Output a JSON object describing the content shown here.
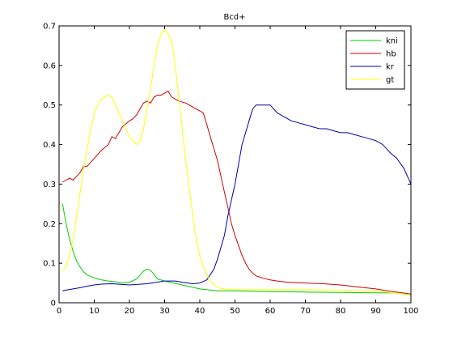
{
  "chart_data": {
    "type": "line",
    "title": "Bcd+",
    "xlabel": "",
    "ylabel": "",
    "xlim": [
      0,
      100
    ],
    "ylim": [
      0,
      0.7
    ],
    "xticks": [
      0,
      10,
      20,
      30,
      40,
      50,
      60,
      70,
      80,
      90,
      100
    ],
    "yticks": [
      0,
      0.1,
      0.2,
      0.3,
      0.4,
      0.5,
      0.6,
      0.7
    ],
    "ytick_labels": [
      "0",
      "0.1",
      "0.2",
      "0.3",
      "0.4",
      "0.5",
      "0.6",
      "0.7"
    ],
    "grid": false,
    "legend_position": "top-right",
    "series": [
      {
        "name": "kni",
        "color": "#00cc00",
        "x": [
          1,
          2,
          3,
          4,
          5,
          6,
          7,
          8,
          10,
          12,
          14,
          16,
          18,
          20,
          22,
          23,
          24,
          25,
          26,
          27,
          28,
          30,
          35,
          40,
          45,
          50,
          60,
          70,
          80,
          90,
          95,
          100
        ],
        "y": [
          0.25,
          0.2,
          0.16,
          0.13,
          0.105,
          0.09,
          0.078,
          0.07,
          0.063,
          0.058,
          0.055,
          0.053,
          0.05,
          0.052,
          0.06,
          0.07,
          0.08,
          0.085,
          0.082,
          0.072,
          0.06,
          0.055,
          0.045,
          0.035,
          0.03,
          0.03,
          0.028,
          0.027,
          0.026,
          0.025,
          0.025,
          0.02
        ]
      },
      {
        "name": "hb",
        "color": "#cc0000",
        "x": [
          1,
          2,
          3,
          4,
          5,
          6,
          7,
          8,
          10,
          12,
          14,
          15,
          16,
          18,
          20,
          21,
          22,
          23,
          24,
          25,
          26,
          27,
          28,
          29,
          30,
          31,
          32,
          34,
          36,
          38,
          40,
          41,
          42,
          43,
          44,
          45,
          46,
          47,
          48,
          49,
          50,
          51,
          52,
          53,
          54,
          55,
          56,
          58,
          60,
          62,
          65,
          70,
          75,
          80,
          85,
          90,
          92,
          95,
          100
        ],
        "y": [
          0.305,
          0.31,
          0.315,
          0.31,
          0.32,
          0.33,
          0.345,
          0.345,
          0.365,
          0.385,
          0.4,
          0.42,
          0.415,
          0.445,
          0.46,
          0.465,
          0.475,
          0.49,
          0.505,
          0.51,
          0.505,
          0.52,
          0.525,
          0.525,
          0.53,
          0.535,
          0.52,
          0.51,
          0.505,
          0.495,
          0.485,
          0.48,
          0.45,
          0.42,
          0.39,
          0.36,
          0.32,
          0.28,
          0.24,
          0.2,
          0.17,
          0.145,
          0.12,
          0.1,
          0.085,
          0.075,
          0.068,
          0.062,
          0.058,
          0.055,
          0.052,
          0.05,
          0.048,
          0.045,
          0.04,
          0.035,
          0.032,
          0.028,
          0.022
        ]
      },
      {
        "name": "kr",
        "color": "#0000aa",
        "x": [
          1,
          2,
          4,
          6,
          8,
          10,
          12,
          15,
          20,
          25,
          30,
          33,
          35,
          38,
          40,
          42,
          44,
          45,
          46,
          47,
          48,
          49,
          50,
          51,
          52,
          53,
          54,
          55,
          56,
          58,
          60,
          61,
          62,
          63,
          64,
          65,
          66,
          68,
          70,
          72,
          74,
          76,
          78,
          80,
          82,
          84,
          86,
          88,
          90,
          92,
          94,
          96,
          98,
          100
        ],
        "y": [
          0.03,
          0.032,
          0.035,
          0.038,
          0.042,
          0.045,
          0.047,
          0.048,
          0.045,
          0.048,
          0.055,
          0.055,
          0.052,
          0.048,
          0.05,
          0.058,
          0.085,
          0.11,
          0.14,
          0.17,
          0.22,
          0.26,
          0.3,
          0.35,
          0.4,
          0.43,
          0.46,
          0.49,
          0.5,
          0.5,
          0.5,
          0.49,
          0.48,
          0.475,
          0.47,
          0.465,
          0.46,
          0.455,
          0.45,
          0.445,
          0.44,
          0.44,
          0.435,
          0.43,
          0.43,
          0.425,
          0.42,
          0.415,
          0.41,
          0.4,
          0.38,
          0.365,
          0.34,
          0.3
        ]
      },
      {
        "name": "gt",
        "color": "#ffff00",
        "x": [
          1,
          2,
          3,
          4,
          5,
          6,
          7,
          8,
          9,
          10,
          11,
          12,
          13,
          14,
          15,
          16,
          17,
          18,
          19,
          20,
          21,
          22,
          23,
          24,
          25,
          26,
          27,
          28,
          29,
          30,
          31,
          32,
          33,
          34,
          35,
          36,
          37,
          38,
          39,
          40,
          41,
          42,
          43,
          44,
          45,
          46,
          48,
          50,
          55,
          60,
          65,
          70,
          80,
          90,
          95,
          100
        ],
        "y": [
          0.08,
          0.09,
          0.12,
          0.16,
          0.22,
          0.28,
          0.34,
          0.39,
          0.44,
          0.48,
          0.5,
          0.515,
          0.52,
          0.525,
          0.52,
          0.5,
          0.48,
          0.46,
          0.44,
          0.42,
          0.41,
          0.4,
          0.41,
          0.44,
          0.49,
          0.54,
          0.6,
          0.65,
          0.68,
          0.69,
          0.68,
          0.66,
          0.6,
          0.52,
          0.44,
          0.36,
          0.29,
          0.22,
          0.16,
          0.12,
          0.09,
          0.07,
          0.055,
          0.045,
          0.04,
          0.036,
          0.034,
          0.033,
          0.033,
          0.033,
          0.033,
          0.033,
          0.032,
          0.03,
          0.025,
          0.02
        ]
      }
    ]
  }
}
